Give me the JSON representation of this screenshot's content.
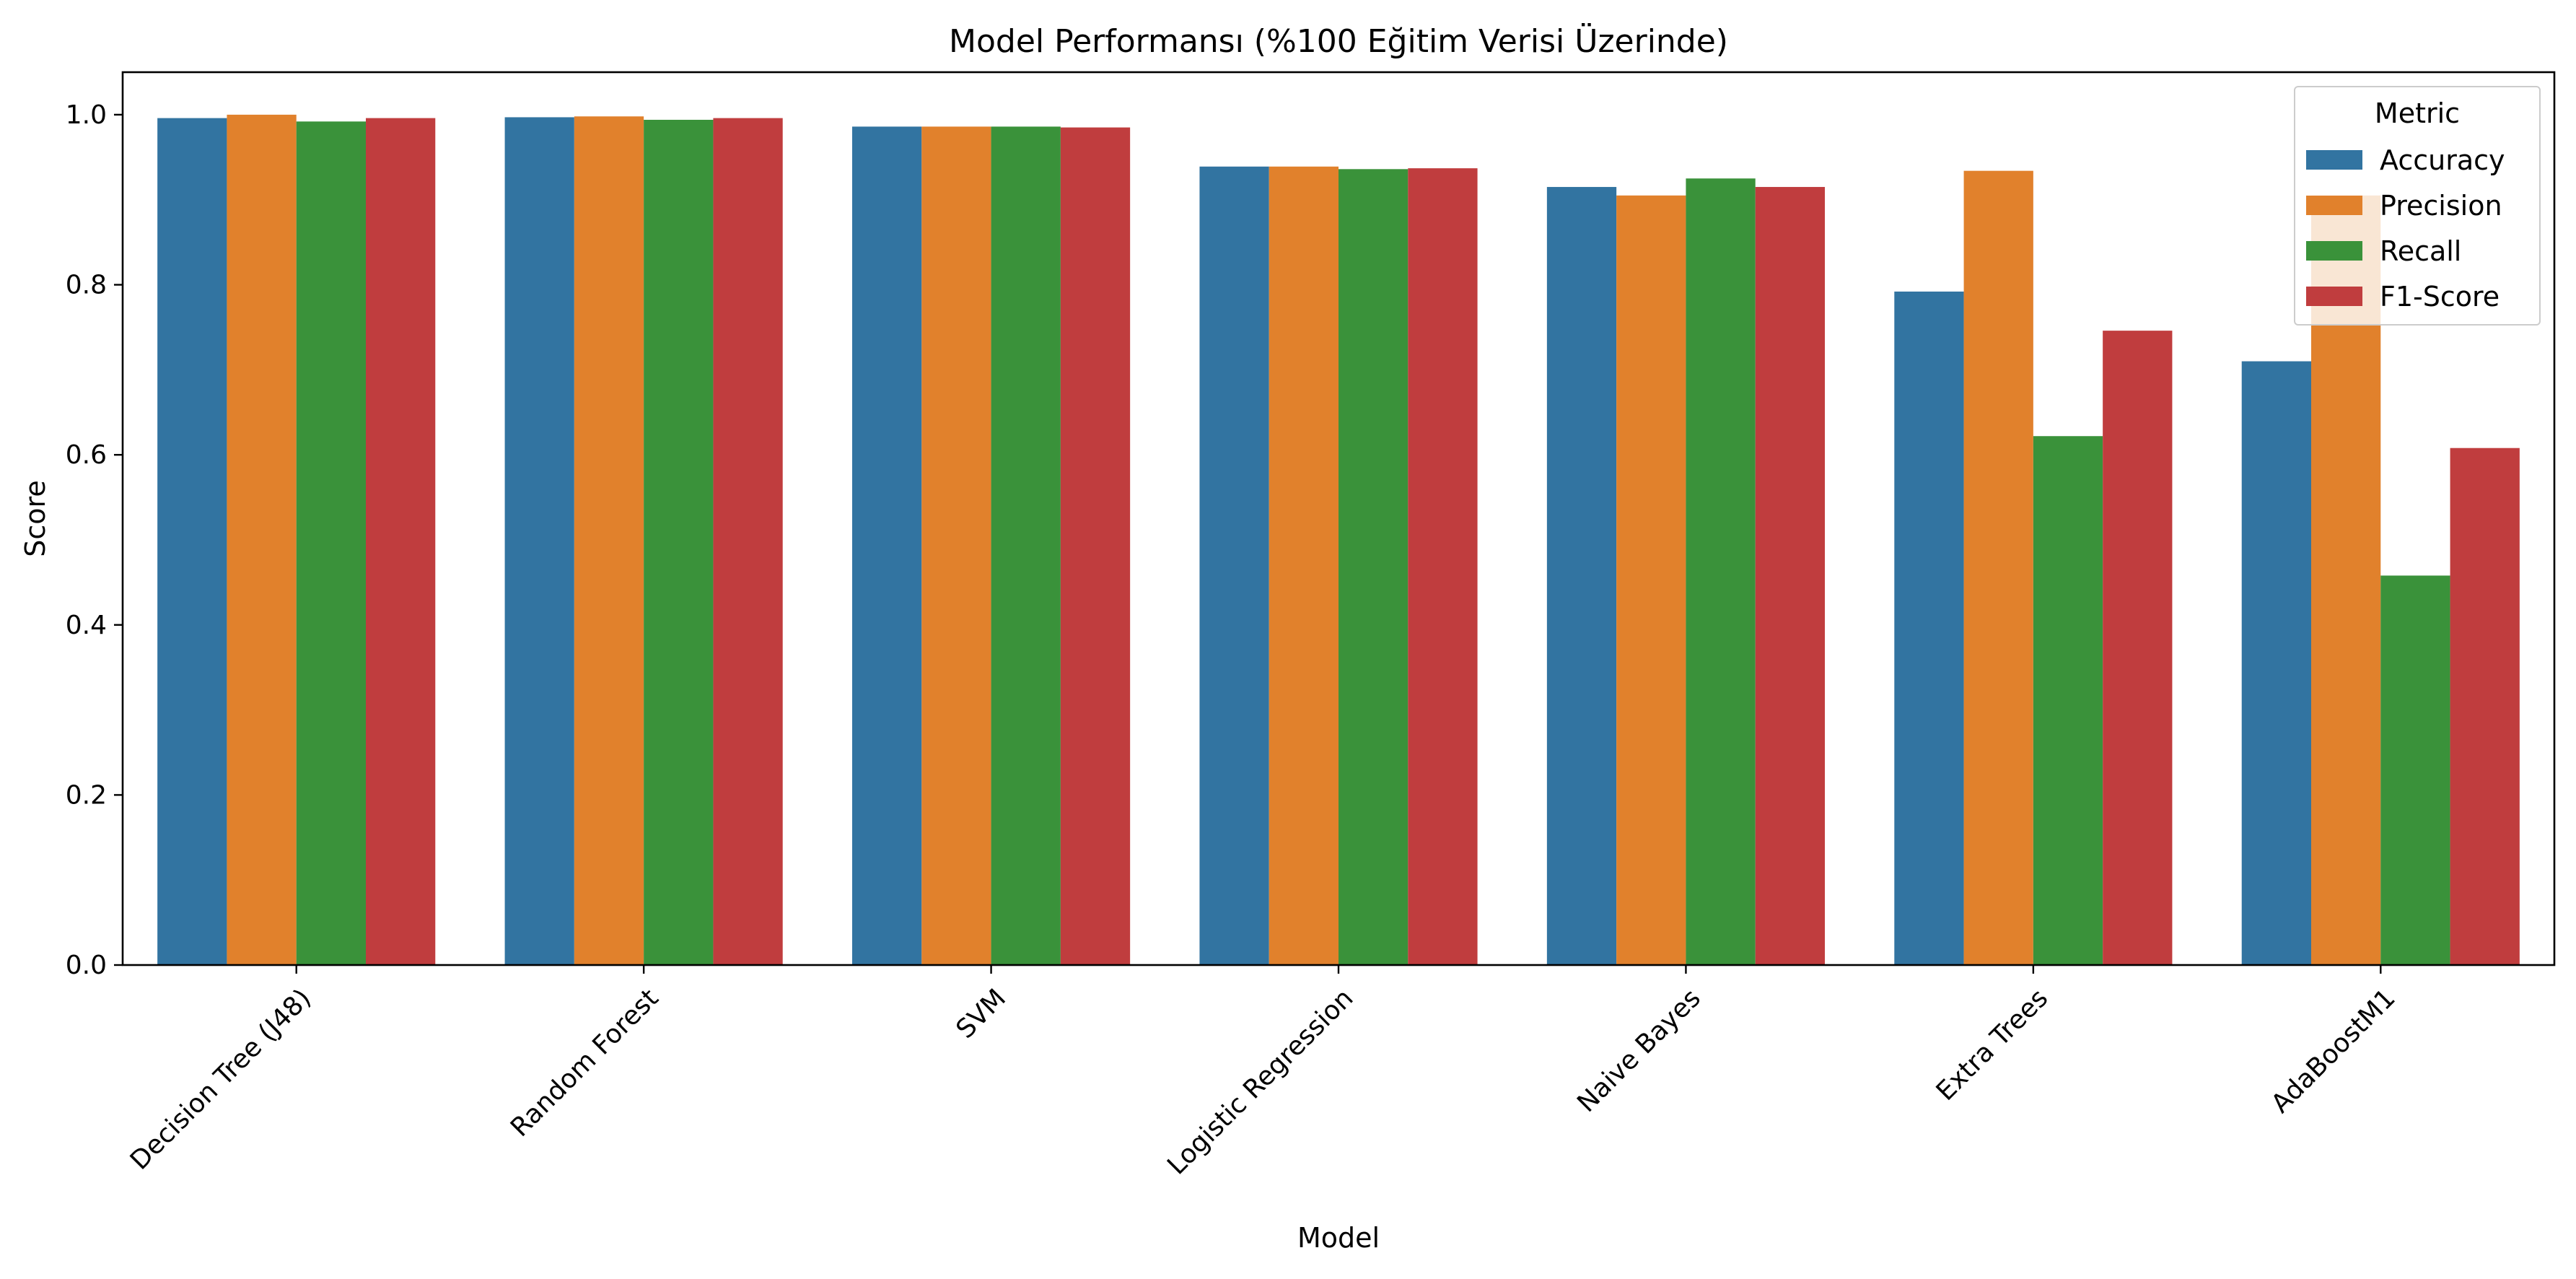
{
  "chart_data": {
    "type": "bar",
    "title": "Model Performansı (%100 Eğitim Verisi Üzerinde)",
    "xlabel": "Model",
    "ylabel": "Score",
    "ylim": [
      0,
      1.05
    ],
    "yticks": [
      0.0,
      0.2,
      0.4,
      0.6,
      0.8,
      1.0
    ],
    "ytick_labels": [
      "0.0",
      "0.2",
      "0.4",
      "0.6",
      "0.8",
      "1.0"
    ],
    "grid": false,
    "legend_position": "top-right",
    "legend_title": "Metric",
    "categories": [
      "Decision Tree (J48)",
      "Random Forest",
      "SVM",
      "Logistic Regression",
      "Naive Bayes",
      "Extra Trees",
      "AdaBoostM1"
    ],
    "series": [
      {
        "name": "Accuracy",
        "color": "#3274a1",
        "values": [
          0.996,
          0.997,
          0.986,
          0.939,
          0.915,
          0.792,
          0.71
        ]
      },
      {
        "name": "Precision",
        "color": "#e1812c",
        "values": [
          1.0,
          0.998,
          0.986,
          0.939,
          0.905,
          0.934,
          0.905
        ]
      },
      {
        "name": "Recall",
        "color": "#3a923a",
        "values": [
          0.992,
          0.994,
          0.986,
          0.936,
          0.925,
          0.622,
          0.458
        ]
      },
      {
        "name": "F1-Score",
        "color": "#c03d3e",
        "values": [
          0.996,
          0.996,
          0.985,
          0.937,
          0.915,
          0.746,
          0.608
        ]
      }
    ]
  }
}
